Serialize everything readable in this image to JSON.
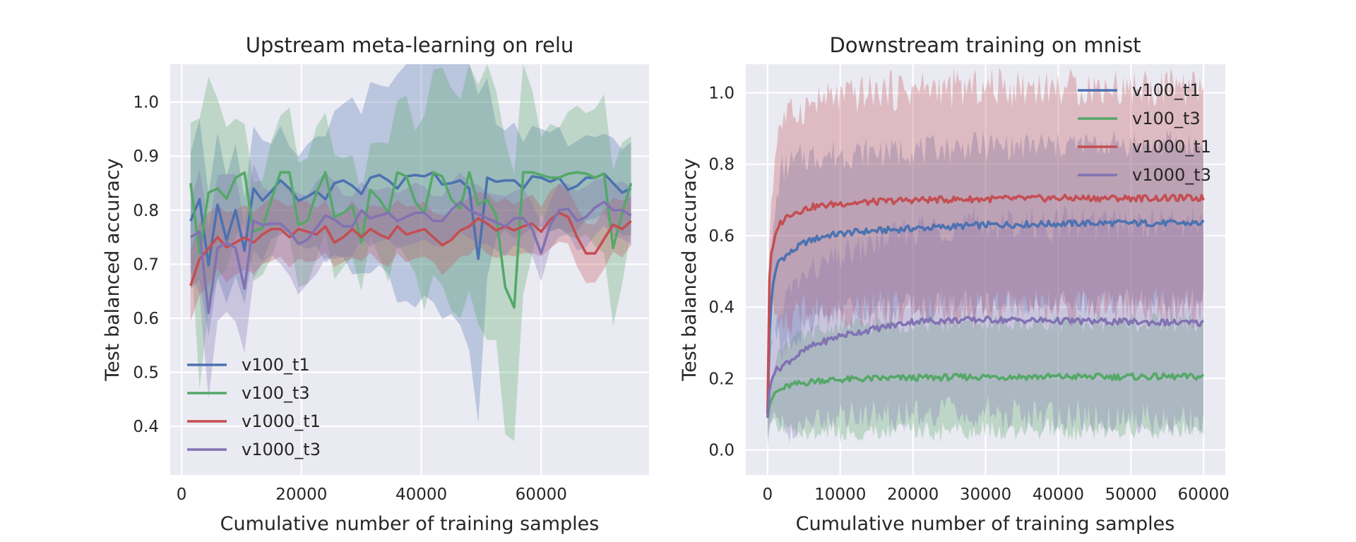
{
  "colors": {
    "background": "#ffffff",
    "plot_area": "#eaeaf2",
    "grid": "#ffffff",
    "text": "#262626",
    "series": [
      "#4c72b0",
      "#55a868",
      "#c44e52",
      "#8172b2"
    ]
  },
  "chart_data": [
    {
      "type": "line",
      "title": "Upstream meta-learning on relu",
      "xlabel": "Cumulative number of training samples",
      "ylabel": "Test balanced accuracy",
      "xlim": [
        -1900,
        78000
      ],
      "ylim": [
        0.31,
        1.07
      ],
      "xticks": [
        0,
        20000,
        40000,
        60000
      ],
      "xtick_labels": [
        "0",
        "20000",
        "40000",
        "60000"
      ],
      "yticks": [
        0.4,
        0.5,
        0.6,
        0.7,
        0.8,
        0.9,
        1.0
      ],
      "ytick_labels": [
        "0.4",
        "0.5",
        "0.6",
        "0.7",
        "0.8",
        "0.9",
        "1.0"
      ],
      "grid": true,
      "legend": "lower-left",
      "x_start": 1500,
      "x_end": 75000,
      "n_points": 50,
      "series": [
        {
          "name": "v100_t1",
          "color": "#4c72b0",
          "keypoints": [
            [
              1500,
              0.78
            ],
            [
              3000,
              0.82
            ],
            [
              4600,
              0.69
            ],
            [
              6000,
              0.81
            ],
            [
              7600,
              0.74
            ],
            [
              9000,
              0.8
            ],
            [
              10600,
              0.72
            ],
            [
              12000,
              0.84
            ],
            [
              14000,
              0.81
            ],
            [
              16000,
              0.86
            ],
            [
              18000,
              0.84
            ],
            [
              20000,
              0.81
            ],
            [
              22000,
              0.84
            ],
            [
              24000,
              0.82
            ],
            [
              26000,
              0.86
            ],
            [
              28000,
              0.85
            ],
            [
              30000,
              0.83
            ],
            [
              32000,
              0.87
            ],
            [
              34000,
              0.86
            ],
            [
              36000,
              0.84
            ],
            [
              38000,
              0.87
            ],
            [
              40000,
              0.86
            ],
            [
              42000,
              0.87
            ],
            [
              44000,
              0.84
            ],
            [
              46000,
              0.86
            ],
            [
              48000,
              0.84
            ],
            [
              49500,
              0.71
            ],
            [
              51000,
              0.86
            ],
            [
              53000,
              0.85
            ],
            [
              55000,
              0.86
            ],
            [
              57000,
              0.84
            ],
            [
              59000,
              0.87
            ],
            [
              61000,
              0.85
            ],
            [
              63000,
              0.86
            ],
            [
              65000,
              0.83
            ],
            [
              67000,
              0.86
            ],
            [
              69000,
              0.86
            ],
            [
              71000,
              0.87
            ],
            [
              73000,
              0.83
            ],
            [
              75000,
              0.84
            ]
          ],
          "band_width": [
            [
              1500,
              0.14
            ],
            [
              20000,
              0.08
            ],
            [
              49500,
              0.31
            ],
            [
              52000,
              0.1
            ],
            [
              75000,
              0.08
            ]
          ]
        },
        {
          "name": "v100_t3",
          "color": "#55a868",
          "keypoints": [
            [
              1500,
              0.85
            ],
            [
              3000,
              0.72
            ],
            [
              4600,
              0.84
            ],
            [
              6000,
              0.84
            ],
            [
              7600,
              0.82
            ],
            [
              9000,
              0.86
            ],
            [
              10600,
              0.87
            ],
            [
              12000,
              0.76
            ],
            [
              14000,
              0.77
            ],
            [
              16000,
              0.87
            ],
            [
              18000,
              0.87
            ],
            [
              20000,
              0.74
            ],
            [
              22000,
              0.82
            ],
            [
              24000,
              0.87
            ],
            [
              26000,
              0.76
            ],
            [
              28000,
              0.83
            ],
            [
              30000,
              0.74
            ],
            [
              32000,
              0.87
            ],
            [
              34000,
              0.77
            ],
            [
              36000,
              0.87
            ],
            [
              38000,
              0.86
            ],
            [
              40000,
              0.77
            ],
            [
              42000,
              0.87
            ],
            [
              44000,
              0.86
            ],
            [
              46000,
              0.78
            ],
            [
              48000,
              0.87
            ],
            [
              50000,
              0.79
            ],
            [
              52000,
              0.85
            ],
            [
              53500,
              0.67
            ],
            [
              55500,
              0.62
            ],
            [
              57000,
              0.87
            ],
            [
              59000,
              0.87
            ],
            [
              61000,
              0.86
            ],
            [
              63000,
              0.86
            ],
            [
              65000,
              0.87
            ],
            [
              67000,
              0.87
            ],
            [
              69000,
              0.86
            ],
            [
              71000,
              0.87
            ],
            [
              72500,
              0.66
            ],
            [
              74000,
              0.86
            ],
            [
              75000,
              0.85
            ]
          ],
          "band_width": [
            [
              1500,
              0.1
            ],
            [
              3000,
              0.27
            ],
            [
              10000,
              0.08
            ],
            [
              20000,
              0.13
            ],
            [
              30000,
              0.08
            ],
            [
              55500,
              0.28
            ],
            [
              60000,
              0.08
            ],
            [
              72500,
              0.15
            ],
            [
              75000,
              0.08
            ]
          ]
        },
        {
          "name": "v1000_t1",
          "color": "#c44e52",
          "keypoints": [
            [
              1500,
              0.66
            ],
            [
              3000,
              0.71
            ],
            [
              4600,
              0.73
            ],
            [
              6000,
              0.75
            ],
            [
              7600,
              0.73
            ],
            [
              9000,
              0.74
            ],
            [
              10600,
              0.75
            ],
            [
              12000,
              0.74
            ],
            [
              14000,
              0.76
            ],
            [
              16000,
              0.77
            ],
            [
              18000,
              0.75
            ],
            [
              20000,
              0.77
            ],
            [
              22000,
              0.75
            ],
            [
              24000,
              0.77
            ],
            [
              26000,
              0.73
            ],
            [
              28000,
              0.77
            ],
            [
              30000,
              0.75
            ],
            [
              32000,
              0.77
            ],
            [
              34000,
              0.74
            ],
            [
              36000,
              0.77
            ],
            [
              38000,
              0.75
            ],
            [
              40000,
              0.77
            ],
            [
              42000,
              0.75
            ],
            [
              44000,
              0.73
            ],
            [
              46000,
              0.76
            ],
            [
              48000,
              0.77
            ],
            [
              50000,
              0.79
            ],
            [
              52000,
              0.76
            ],
            [
              54000,
              0.77
            ],
            [
              56000,
              0.76
            ],
            [
              58000,
              0.78
            ],
            [
              60000,
              0.76
            ],
            [
              62000,
              0.79
            ],
            [
              64000,
              0.8
            ],
            [
              66000,
              0.75
            ],
            [
              68000,
              0.71
            ],
            [
              70000,
              0.73
            ],
            [
              71500,
              0.78
            ],
            [
              73000,
              0.76
            ],
            [
              75000,
              0.78
            ]
          ],
          "band_width": [
            [
              1500,
              0.07
            ],
            [
              20000,
              0.05
            ],
            [
              75000,
              0.05
            ]
          ]
        },
        {
          "name": "v1000_t3",
          "color": "#8172b2",
          "keypoints": [
            [
              1500,
              0.75
            ],
            [
              3000,
              0.76
            ],
            [
              4600,
              0.6
            ],
            [
              6000,
              0.73
            ],
            [
              7600,
              0.74
            ],
            [
              9000,
              0.73
            ],
            [
              10600,
              0.65
            ],
            [
              12000,
              0.78
            ],
            [
              14000,
              0.77
            ],
            [
              16000,
              0.78
            ],
            [
              18000,
              0.76
            ],
            [
              20000,
              0.73
            ],
            [
              22000,
              0.76
            ],
            [
              24000,
              0.79
            ],
            [
              26000,
              0.78
            ],
            [
              28000,
              0.76
            ],
            [
              30000,
              0.8
            ],
            [
              32000,
              0.78
            ],
            [
              34000,
              0.8
            ],
            [
              36000,
              0.78
            ],
            [
              38000,
              0.79
            ],
            [
              40000,
              0.8
            ],
            [
              42000,
              0.78
            ],
            [
              44000,
              0.78
            ],
            [
              46000,
              0.82
            ],
            [
              48000,
              0.8
            ],
            [
              50000,
              0.79
            ],
            [
              52000,
              0.78
            ],
            [
              54000,
              0.77
            ],
            [
              56000,
              0.79
            ],
            [
              58000,
              0.78
            ],
            [
              60000,
              0.72
            ],
            [
              62000,
              0.79
            ],
            [
              64000,
              0.81
            ],
            [
              66000,
              0.78
            ],
            [
              68000,
              0.79
            ],
            [
              70000,
              0.82
            ],
            [
              72000,
              0.8
            ],
            [
              73500,
              0.8
            ],
            [
              75000,
              0.79
            ]
          ],
          "band_width": [
            [
              1500,
              0.06
            ],
            [
              4600,
              0.15
            ],
            [
              10600,
              0.12
            ],
            [
              15000,
              0.06
            ],
            [
              20000,
              0.09
            ],
            [
              30000,
              0.05
            ],
            [
              75000,
              0.05
            ]
          ]
        }
      ]
    },
    {
      "type": "line",
      "title": "Downstream training on mnist",
      "xlabel": "Cumulative number of training samples",
      "ylabel": "Test balanced accuracy",
      "xlim": [
        -3000,
        63000
      ],
      "ylim": [
        -0.07,
        1.08
      ],
      "xticks": [
        0,
        10000,
        20000,
        30000,
        40000,
        50000,
        60000
      ],
      "xtick_labels": [
        "0",
        "10000",
        "20000",
        "30000",
        "40000",
        "50000",
        "60000"
      ],
      "yticks": [
        0.0,
        0.2,
        0.4,
        0.6,
        0.8,
        1.0
      ],
      "ytick_labels": [
        "0.0",
        "0.2",
        "0.4",
        "0.6",
        "0.8",
        "1.0"
      ],
      "grid": true,
      "legend": "upper-right",
      "x_start": 0,
      "x_end": 60000,
      "n_points": 240,
      "series": [
        {
          "name": "v100_t1",
          "color": "#4c72b0",
          "keypoints": [
            [
              0,
              0.1
            ],
            [
              200,
              0.3
            ],
            [
              600,
              0.45
            ],
            [
              1500,
              0.53
            ],
            [
              3000,
              0.55
            ],
            [
              5000,
              0.58
            ],
            [
              8000,
              0.6
            ],
            [
              12000,
              0.61
            ],
            [
              20000,
              0.62
            ],
            [
              30000,
              0.63
            ],
            [
              45000,
              0.635
            ],
            [
              60000,
              0.635
            ]
          ],
          "band_width": [
            [
              0,
              0.08
            ],
            [
              2000,
              0.25
            ],
            [
              10000,
              0.22
            ],
            [
              60000,
              0.22
            ]
          ]
        },
        {
          "name": "v100_t3",
          "color": "#55a868",
          "keypoints": [
            [
              0,
              0.09
            ],
            [
              300,
              0.13
            ],
            [
              1000,
              0.16
            ],
            [
              3000,
              0.18
            ],
            [
              7000,
              0.195
            ],
            [
              15000,
              0.2
            ],
            [
              30000,
              0.205
            ],
            [
              60000,
              0.205
            ]
          ],
          "band_width": [
            [
              0,
              0.05
            ],
            [
              2000,
              0.12
            ],
            [
              10000,
              0.15
            ],
            [
              60000,
              0.15
            ]
          ]
        },
        {
          "name": "v1000_t1",
          "color": "#c44e52",
          "keypoints": [
            [
              0,
              0.1
            ],
            [
              150,
              0.45
            ],
            [
              500,
              0.55
            ],
            [
              1500,
              0.63
            ],
            [
              3000,
              0.66
            ],
            [
              6000,
              0.68
            ],
            [
              10000,
              0.69
            ],
            [
              20000,
              0.7
            ],
            [
              40000,
              0.705
            ],
            [
              60000,
              0.705
            ]
          ],
          "band_width": [
            [
              0,
              0.08
            ],
            [
              1500,
              0.28
            ],
            [
              10000,
              0.3
            ],
            [
              20000,
              0.31
            ],
            [
              60000,
              0.31
            ]
          ]
        },
        {
          "name": "v1000_t3",
          "color": "#8172b2",
          "keypoints": [
            [
              0,
              0.09
            ],
            [
              300,
              0.18
            ],
            [
              1000,
              0.22
            ],
            [
              3000,
              0.25
            ],
            [
              6000,
              0.29
            ],
            [
              10000,
              0.32
            ],
            [
              15000,
              0.34
            ],
            [
              20000,
              0.36
            ],
            [
              30000,
              0.365
            ],
            [
              45000,
              0.36
            ],
            [
              60000,
              0.355
            ]
          ],
          "band_width": [
            [
              0,
              0.08
            ],
            [
              3000,
              0.2
            ],
            [
              10000,
              0.22
            ],
            [
              20000,
              0.26
            ],
            [
              60000,
              0.28
            ]
          ]
        }
      ]
    }
  ]
}
